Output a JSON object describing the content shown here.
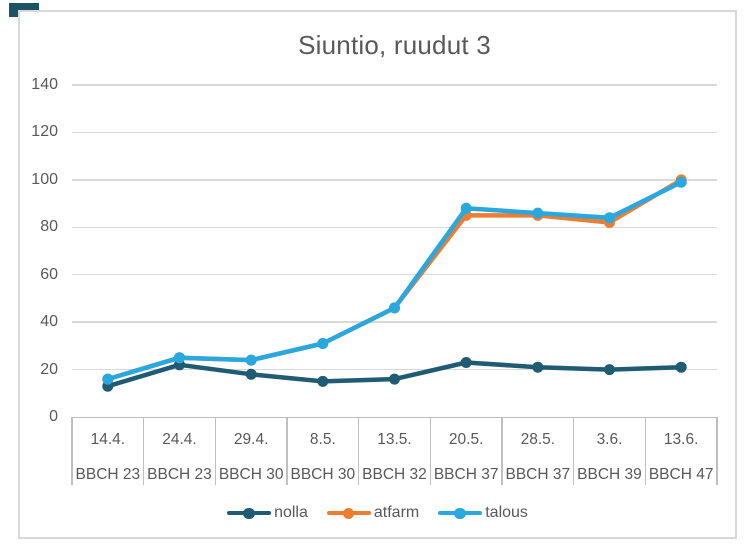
{
  "title": "Siuntio, ruudut 3",
  "chart_data": {
    "type": "line",
    "title": "Siuntio, ruudut 3",
    "categories": [
      "14.4.",
      "24.4.",
      "29.4.",
      "8.5.",
      "13.5.",
      "20.5.",
      "28.5.",
      "3.6.",
      "13.6."
    ],
    "categories_bbch": [
      "BBCH 23",
      "BBCH 23",
      "BBCH 30",
      "BBCH 30",
      "BBCH 32",
      "BBCH 37",
      "BBCH 37",
      "BBCH 39",
      "BBCH 47"
    ],
    "xlabel": "",
    "ylabel": "",
    "ylim": [
      0,
      140
    ],
    "yticks": [
      0,
      20,
      40,
      60,
      80,
      100,
      120,
      140
    ],
    "grid": true,
    "legend_position": "bottom",
    "series": [
      {
        "name": "nolla",
        "color": "#1F5B72",
        "values": [
          13,
          22,
          18,
          15,
          16,
          23,
          21,
          20,
          21
        ]
      },
      {
        "name": "atfarm",
        "color": "#ED7D31",
        "values": [
          16,
          25,
          24,
          31,
          46,
          85,
          85,
          82,
          100
        ]
      },
      {
        "name": "talous",
        "color": "#29A8E0",
        "values": [
          16,
          25,
          24,
          31,
          46,
          88,
          86,
          84,
          99
        ]
      }
    ],
    "colors": {
      "text": "#595959",
      "gridline": "#D9D9D9",
      "axis_line": "#BFBFBF",
      "frame_border": "#D9D9D9",
      "corner_mark": "#1E5366"
    }
  }
}
